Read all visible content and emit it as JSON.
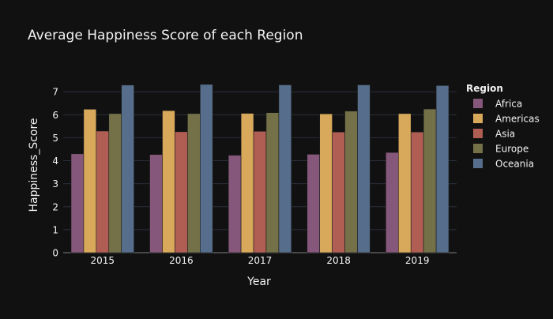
{
  "chart_data": {
    "type": "bar",
    "title": "Average Happiness Score of each Region",
    "xlabel": "Year",
    "ylabel": "Happiness_Score",
    "categories": [
      "2015",
      "2016",
      "2017",
      "2018",
      "2019"
    ],
    "yticks": [
      "0",
      "1",
      "2",
      "3",
      "4",
      "5",
      "6",
      "7"
    ],
    "ylim": [
      0,
      7.9
    ],
    "grid": true,
    "legend_title": "Region",
    "legend_position": "right",
    "series": [
      {
        "name": "Africa",
        "color": "#85577a",
        "values": [
          4.3,
          4.27,
          4.24,
          4.28,
          4.36
        ]
      },
      {
        "name": "Americas",
        "color": "#d9a95b",
        "values": [
          6.24,
          6.18,
          6.06,
          6.04,
          6.05
        ]
      },
      {
        "name": "Asia",
        "color": "#b05e53",
        "values": [
          5.29,
          5.26,
          5.28,
          5.25,
          5.25
        ]
      },
      {
        "name": "Europe",
        "color": "#747048",
        "values": [
          6.05,
          6.05,
          6.09,
          6.16,
          6.25
        ]
      },
      {
        "name": "Oceania",
        "color": "#566e8c",
        "values": [
          7.29,
          7.32,
          7.3,
          7.3,
          7.27
        ]
      }
    ]
  }
}
